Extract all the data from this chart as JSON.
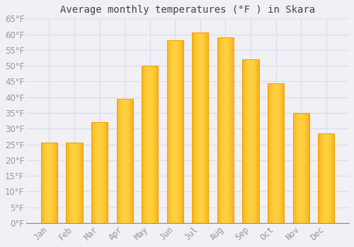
{
  "title": "Average monthly temperatures (°F ) in Skara",
  "months": [
    "Jan",
    "Feb",
    "Mar",
    "Apr",
    "May",
    "Jun",
    "Jul",
    "Aug",
    "Sep",
    "Oct",
    "Nov",
    "Dec"
  ],
  "values": [
    25.5,
    25.5,
    32.0,
    39.5,
    50.0,
    58.0,
    60.5,
    59.0,
    52.0,
    44.5,
    35.0,
    28.5
  ],
  "bar_color_center": "#FFD040",
  "bar_color_edge": "#F0A000",
  "background_color": "#F0F0F5",
  "grid_color": "#DDDDEE",
  "text_color": "#999999",
  "title_color": "#444444",
  "ylim": [
    0,
    65
  ],
  "yticks": [
    0,
    5,
    10,
    15,
    20,
    25,
    30,
    35,
    40,
    45,
    50,
    55,
    60,
    65
  ],
  "title_fontsize": 10,
  "tick_fontsize": 8.5,
  "bar_width": 0.65
}
